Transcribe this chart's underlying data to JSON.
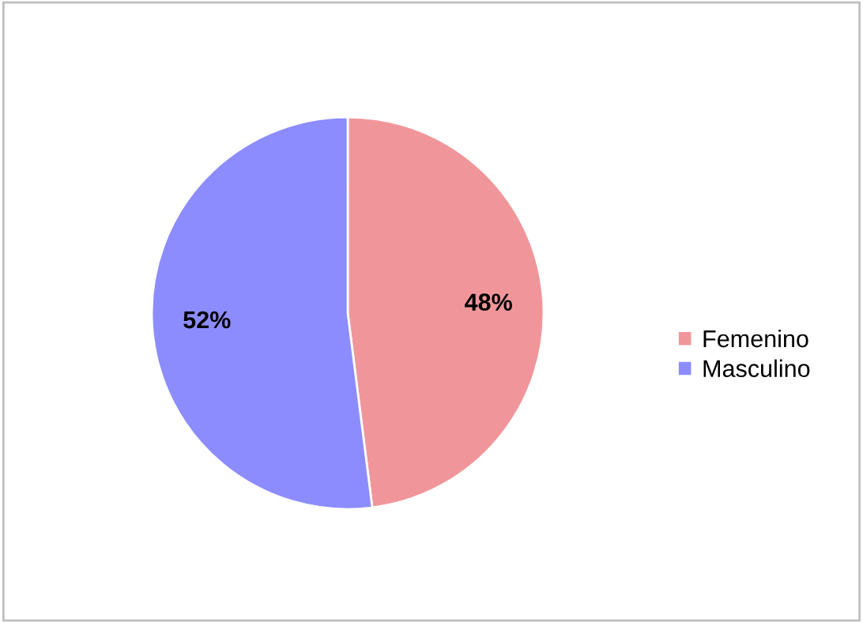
{
  "chart_data": {
    "type": "pie",
    "categories": [
      "Femenino",
      "Masculino"
    ],
    "values": [
      48,
      52
    ],
    "colors": [
      "#f0969a",
      "#8c8cff"
    ],
    "value_labels": [
      "48%",
      "52%"
    ],
    "legend": "right"
  }
}
